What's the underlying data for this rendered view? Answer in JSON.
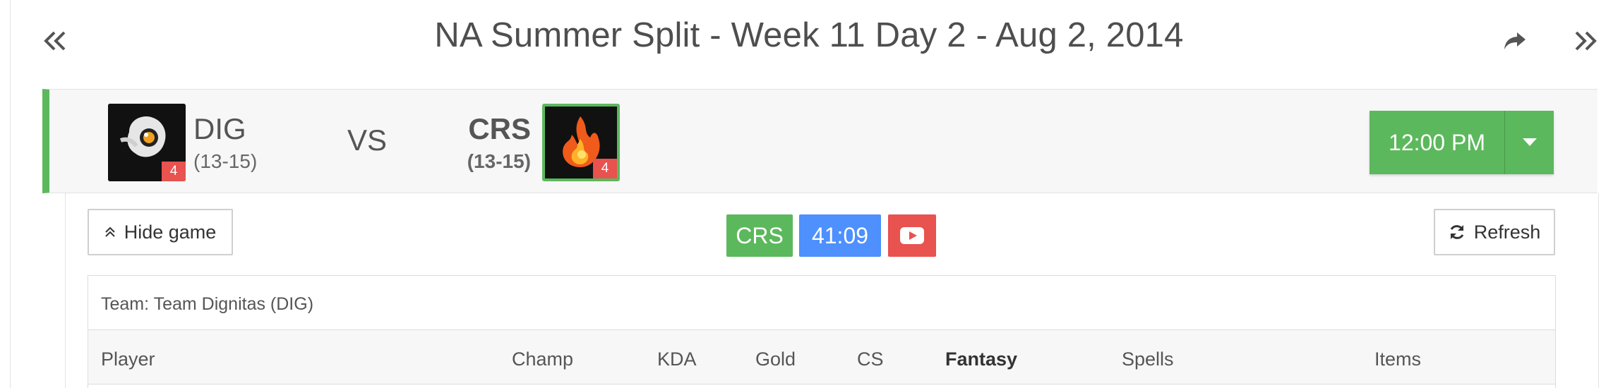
{
  "header": {
    "title": "NA Summer Split - Week 11 Day 2 - Aug 2, 2014",
    "prev_icon": "double-chevron-left-icon",
    "share_icon": "share-arrow-icon",
    "next_icon": "double-chevron-right-icon"
  },
  "match": {
    "team1": {
      "name": "DIG",
      "record": "(13-15)",
      "seed": "4"
    },
    "vs": "VS",
    "team2": {
      "name": "CRS",
      "record": "(13-15)",
      "seed": "4",
      "selected": true
    },
    "time": "12:00 PM",
    "accent_color": "#5cb85c"
  },
  "game": {
    "hide_label": "Hide game",
    "winner": "CRS",
    "duration": "41:09",
    "video_icon": "youtube-play-icon",
    "refresh_label": "Refresh",
    "colors": {
      "winner": "#5cb85c",
      "duration": "#4d90fe",
      "video": "#e8524f"
    }
  },
  "table": {
    "team_label": "Team: Team Dignitas (DIG)",
    "columns": [
      "Player",
      "Champ",
      "KDA",
      "Gold",
      "CS",
      "Fantasy",
      "Spells",
      "Items"
    ]
  }
}
